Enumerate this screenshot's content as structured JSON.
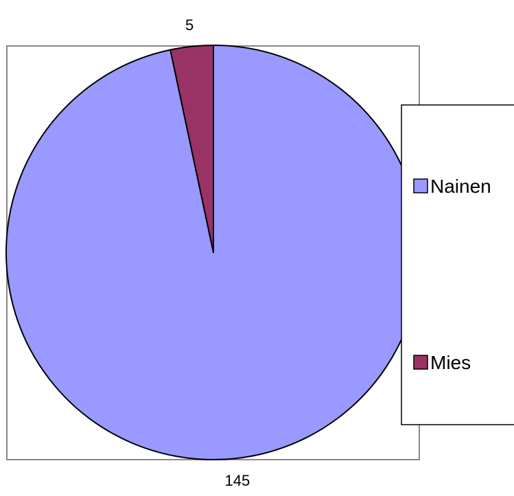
{
  "chart_data": {
    "type": "pie",
    "categories": [
      "Nainen",
      "Mies"
    ],
    "values": [
      145,
      5
    ],
    "colors": [
      "#9999ff",
      "#993366"
    ],
    "data_labels": [
      "145",
      "5"
    ],
    "legend": {
      "placement": "right",
      "entries": [
        "Nainen",
        "Mies"
      ]
    },
    "title": ""
  }
}
